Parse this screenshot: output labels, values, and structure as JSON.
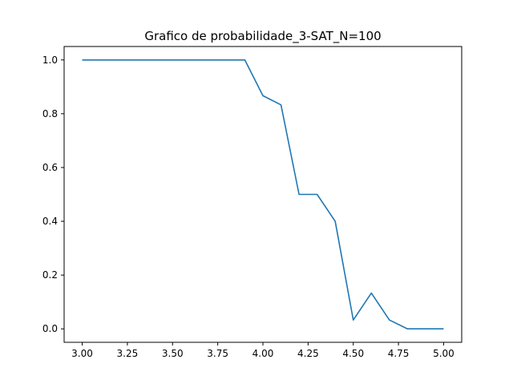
{
  "chart_data": {
    "type": "line",
    "title": "Grafico de probabilidade_3-SAT_N=100",
    "xlabel": "",
    "ylabel": "",
    "xlim": [
      2.9,
      5.1
    ],
    "ylim": [
      -0.05,
      1.05
    ],
    "grid": false,
    "xticks": [
      3.0,
      3.25,
      3.5,
      3.75,
      4.0,
      4.25,
      4.5,
      4.75,
      5.0
    ],
    "xtick_labels": [
      "3.00",
      "3.25",
      "3.50",
      "3.75",
      "4.00",
      "4.25",
      "4.50",
      "4.75",
      "5.00"
    ],
    "yticks": [
      0.0,
      0.2,
      0.4,
      0.6,
      0.8,
      1.0
    ],
    "ytick_labels": [
      "0.0",
      "0.2",
      "0.4",
      "0.6",
      "0.8",
      "1.0"
    ],
    "series": [
      {
        "color": "#1f77b4",
        "x": [
          3.0,
          3.1,
          3.2,
          3.3,
          3.4,
          3.5,
          3.6,
          3.7,
          3.8,
          3.9,
          4.0,
          4.1,
          4.2,
          4.3,
          4.4,
          4.5,
          4.6,
          4.7,
          4.8,
          4.9,
          5.0
        ],
        "y": [
          1.0,
          1.0,
          1.0,
          1.0,
          1.0,
          1.0,
          1.0,
          1.0,
          1.0,
          1.0,
          0.867,
          0.833,
          0.5,
          0.5,
          0.4,
          0.033,
          0.133,
          0.033,
          0.0,
          0.0,
          0.0
        ]
      }
    ]
  }
}
